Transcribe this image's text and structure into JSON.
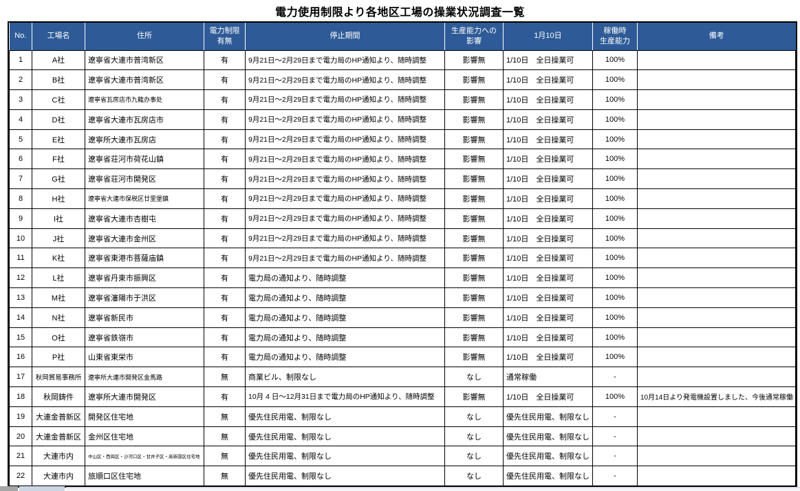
{
  "title": "電力使用制限より各地区工場の操業状況調査一覧",
  "colors": {
    "header_bg": "#2E5B97",
    "header_text": "#FFFFFF",
    "grid_line": "#000000"
  },
  "table": {
    "columns": [
      "No.",
      "工場名",
      "住所",
      "電力制限\n有無",
      "停止期間",
      "生産能力への\n影響",
      "1月10日",
      "稼働時\n生産能力",
      "備考"
    ],
    "rows": [
      {
        "no": "1",
        "name": "A社",
        "address": "遼寧省大連市普湾新区",
        "restriction": "有",
        "period": "9月21日～2月29日まで電力局のHP通知より、随時調整",
        "impact": "影響無",
        "status": "1/10日　全日操業可",
        "capacity": "100%",
        "remarks": ""
      },
      {
        "no": "2",
        "name": "B社",
        "address": "遼寧省大連市普湾新区",
        "restriction": "有",
        "period": "9月21日～2月29日まで電力局のHP通知より、随時調整",
        "impact": "影響無",
        "status": "1/10日　全日操業可",
        "capacity": "100%",
        "remarks": ""
      },
      {
        "no": "3",
        "name": "C社",
        "address": "遼寧省瓦房店市九龍办事处",
        "restriction": "有",
        "period": "9月21日～2月29日まで電力局のHP通知より、随時調整",
        "impact": "影響無",
        "status": "1/10日　全日操業可",
        "capacity": "100%",
        "remarks": ""
      },
      {
        "no": "4",
        "name": "D社",
        "address": "遼寧省大連市瓦房店市",
        "restriction": "有",
        "period": "9月21日～2月29日まで電力局のHP通知より、随時調整",
        "impact": "影響無",
        "status": "1/10日　全日操業可",
        "capacity": "100%",
        "remarks": ""
      },
      {
        "no": "5",
        "name": "E社",
        "address": "遼寧所大連市瓦房店",
        "restriction": "有",
        "period": "9月21日～2月29日まで電力局のHP通知より、随時調整",
        "impact": "影響無",
        "status": "1/10日　全日操業可",
        "capacity": "100%",
        "remarks": ""
      },
      {
        "no": "6",
        "name": "F社",
        "address": "遼寧省荘河市荷花山鎮",
        "restriction": "有",
        "period": "9月21日～2月29日まで電力局のHP通知より、随時調整",
        "impact": "影響無",
        "status": "1/10日　全日操業可",
        "capacity": "100%",
        "remarks": ""
      },
      {
        "no": "7",
        "name": "G社",
        "address": "遼寧省荘河市開発区",
        "restriction": "有",
        "period": "9月21日～2月29日まで電力局のHP通知より、随時調整",
        "impact": "影響無",
        "status": "1/10日　全日操業可",
        "capacity": "100%",
        "remarks": ""
      },
      {
        "no": "8",
        "name": "H社",
        "address": "遼寧省大連市保税区廿里堡鎮",
        "restriction": "有",
        "period": "9月21日～2月29日まで電力局のHP通知より、随時調整",
        "impact": "影響無",
        "status": "1/10日　全日操業可",
        "capacity": "100%",
        "remarks": ""
      },
      {
        "no": "9",
        "name": "I社",
        "address": "遼寧省大連市杏樹屯",
        "restriction": "有",
        "period": "9月21日～2月29日まで電力局のHP通知より、随時調整",
        "impact": "影響無",
        "status": "1/10日　全日操業可",
        "capacity": "100%",
        "remarks": ""
      },
      {
        "no": "10",
        "name": "J社",
        "address": "遼寧省大連市金州区",
        "restriction": "有",
        "period": "9月21日～2月29日まで電力局のHP通知より、随時調整",
        "impact": "影響無",
        "status": "1/10日　全日操業可",
        "capacity": "100%",
        "remarks": ""
      },
      {
        "no": "11",
        "name": "K社",
        "address": "遼寧省東港市菩薩庙鎮",
        "restriction": "有",
        "period": "9月21日～2月29日まで電力局のHP通知より、随時調整",
        "impact": "影響無",
        "status": "1/10日　全日操業可",
        "capacity": "100%",
        "remarks": ""
      },
      {
        "no": "12",
        "name": "L社",
        "address": "遼寧省丹東市振興区",
        "restriction": "有",
        "period": "電力局の通知より、随時調整",
        "impact": "影響無",
        "status": "1/10日　全日操業可",
        "capacity": "100%",
        "remarks": ""
      },
      {
        "no": "13",
        "name": "M社",
        "address": "遼寧省瀋陽市于洪区",
        "restriction": "有",
        "period": "電力局の通知より、随時調整",
        "impact": "影響無",
        "status": "1/10日　全日操業可",
        "capacity": "100%",
        "remarks": ""
      },
      {
        "no": "14",
        "name": "N社",
        "address": "遼寧省新民市",
        "restriction": "有",
        "period": "電力局の通知より、随時調整",
        "impact": "影響無",
        "status": "1/10日　全日操業可",
        "capacity": "100%",
        "remarks": ""
      },
      {
        "no": "15",
        "name": "O社",
        "address": "遼寧省鉄嶺市",
        "restriction": "有",
        "period": "電力局の通知より、随時調整",
        "impact": "影響無",
        "status": "1/10日　全日操業可",
        "capacity": "100%",
        "remarks": ""
      },
      {
        "no": "16",
        "name": "P社",
        "address": "山東省東栄市",
        "restriction": "有",
        "period": "電力局の通知より、随時調整",
        "impact": "影響無",
        "status": "1/10日　全日操業可",
        "capacity": "100%",
        "remarks": ""
      },
      {
        "no": "17",
        "name": "秋岡貿易事務所",
        "address": "遼寧所大連市開発区金馬路",
        "restriction": "無",
        "period": "商業ビル、制限なし",
        "impact": "なし",
        "status": "通常稼働",
        "capacity": "-",
        "remarks": ""
      },
      {
        "no": "18",
        "name": "秋岡鋳件",
        "address": "遼寧所大連市開発区",
        "restriction": "有",
        "period": "10月 4 日～12月31日まで電力局のHP通知より、随時調整",
        "impact": "影響無",
        "status": "1/10日　全日操業可",
        "capacity": "100%",
        "remarks": "10月14日より発電機設置しました、今後通常稼働"
      },
      {
        "no": "19",
        "name": "大連金普新区",
        "address": "開発区住宅地",
        "restriction": "無",
        "period": "優先住民用電、制限なし",
        "impact": "なし",
        "status": "優先住民用電、制限なし",
        "capacity": "-",
        "remarks": ""
      },
      {
        "no": "20",
        "name": "大連金普新区",
        "address": "金州区住宅地",
        "restriction": "無",
        "period": "優先住民用電、制限なし",
        "impact": "なし",
        "status": "優先住民用電、制限なし",
        "capacity": "-",
        "remarks": ""
      },
      {
        "no": "21",
        "name": "大連市内",
        "address": "中山区・西崗区・沙河口区・甘井子区・高新園区住宅地",
        "restriction": "無",
        "period": "優先住民用電、制限なし",
        "impact": "なし",
        "status": "優先住民用電、制限なし",
        "capacity": "-",
        "remarks": ""
      },
      {
        "no": "22",
        "name": "大連市内",
        "address": "旅順口区住宅地",
        "restriction": "無",
        "period": "優先住民用電、制限なし",
        "impact": "なし",
        "status": "優先住民用電、制限なし",
        "capacity": "-",
        "remarks": ""
      }
    ]
  }
}
